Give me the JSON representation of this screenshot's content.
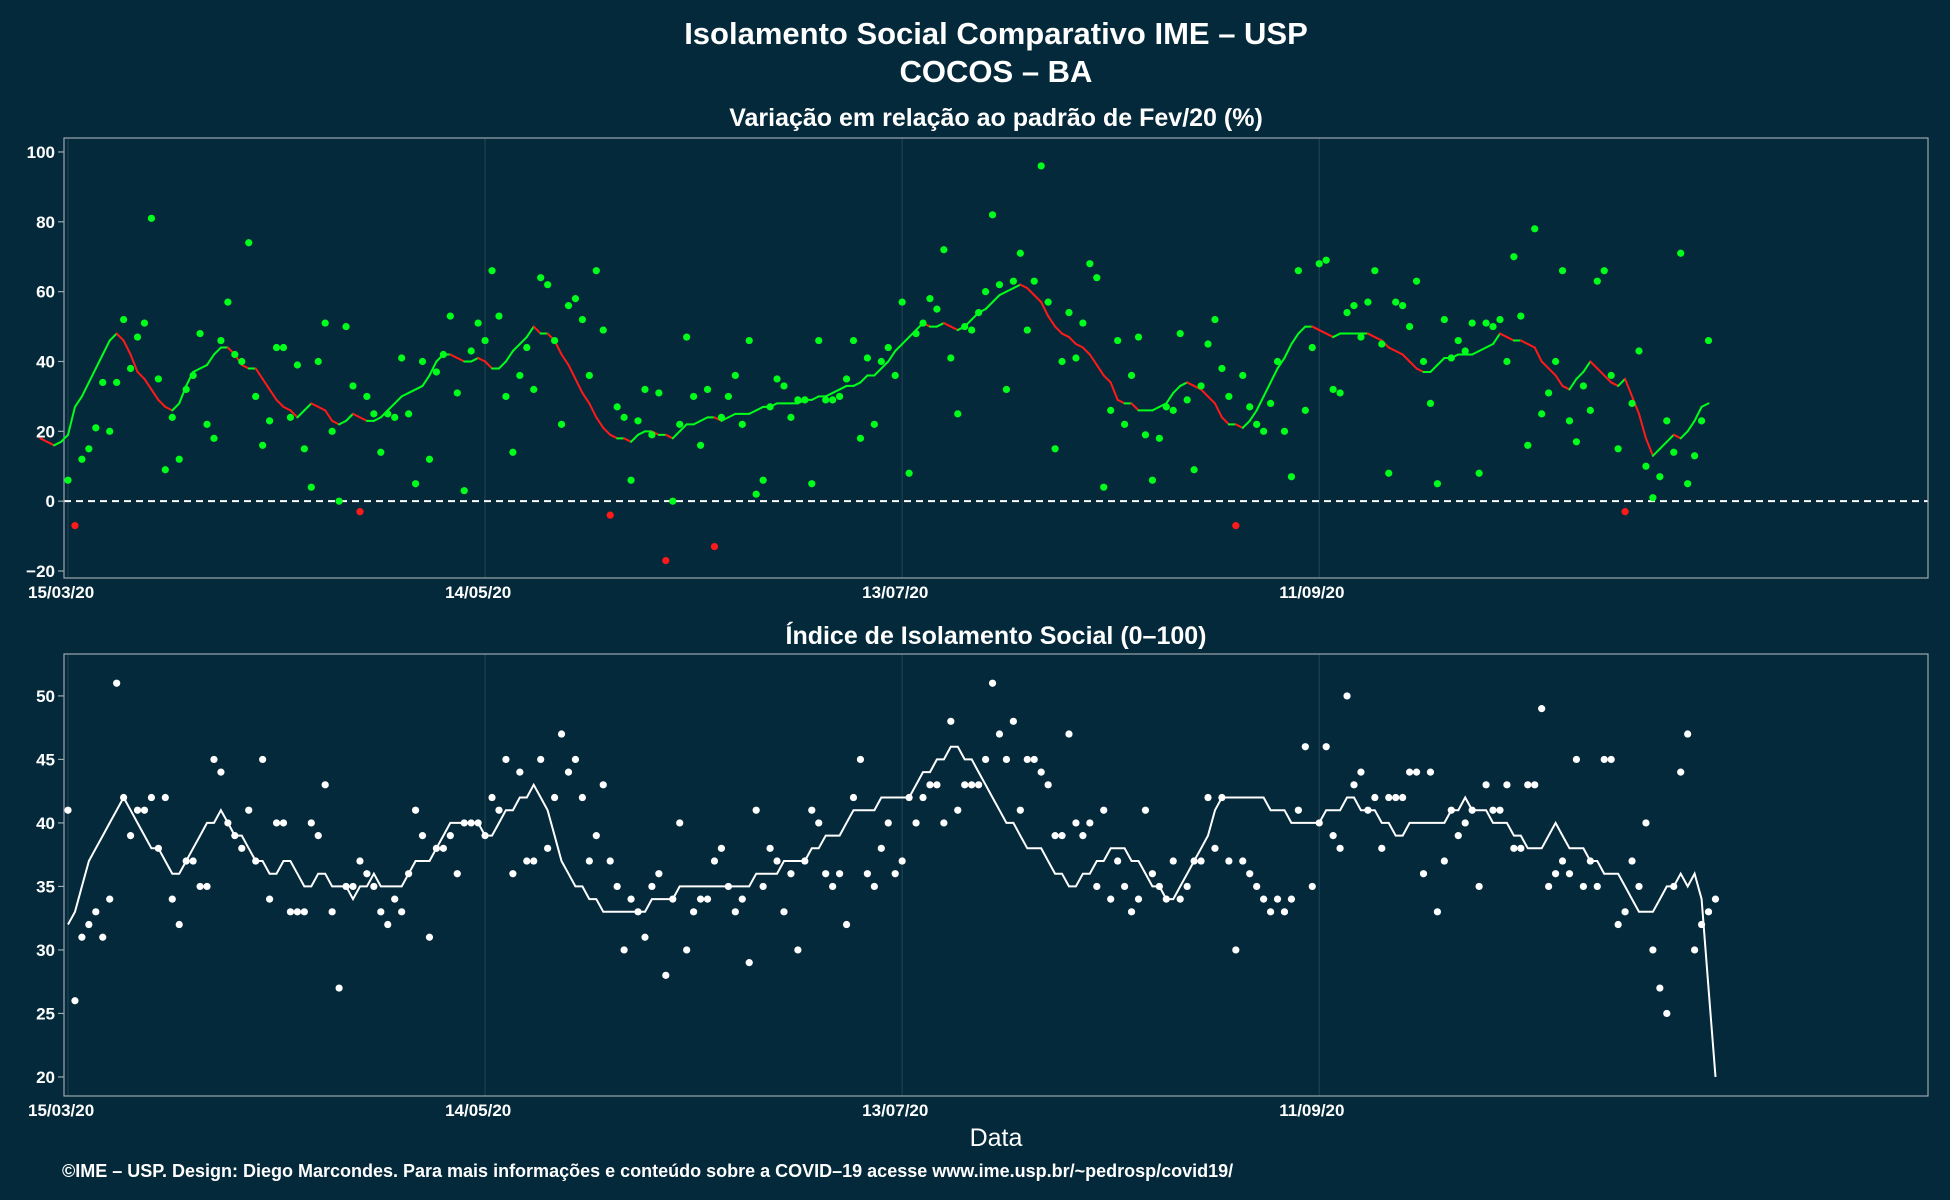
{
  "title": "Isolamento Social Comparativo IME – USP",
  "subtitle": "COCOS – BA",
  "xlabel": "Data",
  "footer": "©IME – USP. Design: Diego Marcondes. Para mais informações e conteúdo sobre a COVID–19 acesse www.ime.usp.br/~pedrosp/covid19/",
  "colors": {
    "background": "#04293a",
    "positive_point": "#00ff1a",
    "negative_point": "#ff1a1a",
    "index_point": "#ffffff",
    "zero_line": "#ffffff",
    "grid": "#1e4152",
    "frame": "#9aa8b0"
  },
  "chart_data": [
    {
      "type": "scatter",
      "title": "Variação em relação ao padrão de Fev/20 (%)",
      "x_start": "15/03/20",
      "x_end": "07/12/20",
      "x_ticks": [
        "15/03/20",
        "14/05/20",
        "13/07/20",
        "11/09/20"
      ],
      "ylim": [
        -22,
        104
      ],
      "y_ticks": [
        -20,
        0,
        20,
        40,
        60,
        80,
        100
      ],
      "zero_line": true,
      "series": [
        {
          "name": "",
          "role": "points",
          "values": [
            6,
            -7,
            12,
            15,
            21,
            34,
            20,
            34,
            52,
            38,
            47,
            51,
            81,
            35,
            9,
            24,
            12,
            32,
            36,
            48,
            22,
            18,
            46,
            57,
            42,
            40,
            74,
            30,
            16,
            23,
            44,
            44,
            24,
            39,
            15,
            4,
            40,
            51,
            20,
            0,
            50,
            33,
            -3,
            30,
            25,
            14,
            25,
            24,
            41,
            25,
            5,
            40,
            12,
            37,
            42,
            53,
            31,
            3,
            43,
            51,
            46,
            66,
            53,
            30,
            14,
            36,
            44,
            32,
            64,
            62,
            46,
            22,
            56,
            58,
            52,
            36,
            66,
            49,
            -4,
            27,
            24,
            6,
            23,
            32,
            19,
            31,
            -17,
            0,
            22,
            47,
            30,
            16,
            32,
            -13,
            24,
            30,
            36,
            22,
            46,
            2,
            6,
            27,
            35,
            33,
            24,
            29,
            29,
            5,
            46,
            29,
            29,
            30,
            35,
            46,
            18,
            41,
            22,
            40,
            44,
            36,
            57,
            8,
            48,
            51,
            58,
            55,
            72,
            41,
            25,
            50,
            49,
            54,
            60,
            82,
            62,
            32,
            63,
            71,
            49,
            63,
            96,
            57,
            15,
            40,
            54,
            41,
            51,
            68,
            64,
            4,
            26,
            46,
            22,
            36,
            47,
            19,
            6,
            18,
            27,
            26,
            48,
            29,
            9,
            33,
            45,
            52,
            38,
            30,
            -7,
            36,
            27,
            22,
            20,
            28,
            40,
            20,
            7,
            66,
            26,
            44,
            68,
            69,
            32,
            31,
            54,
            56,
            47,
            57,
            66,
            45,
            8,
            57,
            56,
            50,
            63,
            40,
            28,
            5,
            52,
            41,
            46,
            43,
            51,
            8,
            51,
            50,
            52,
            40,
            70,
            53,
            16,
            78,
            25,
            31,
            40,
            66,
            23,
            17,
            33,
            26,
            63,
            66,
            36,
            15,
            -3,
            28,
            43,
            10,
            1,
            7,
            23,
            14,
            71,
            5,
            13,
            23,
            46
          ]
        },
        {
          "name": "",
          "role": "moving_average",
          "values": [
            18,
            17,
            16,
            17,
            19,
            27,
            30,
            34,
            38,
            42,
            46,
            48,
            46,
            42,
            37,
            35,
            32,
            29,
            27,
            26,
            28,
            33,
            37,
            38,
            39,
            42,
            44,
            44,
            42,
            39,
            38,
            38,
            35,
            32,
            29,
            27,
            26,
            24,
            26,
            28,
            27,
            26,
            23,
            22,
            23,
            25,
            24,
            23,
            23,
            24,
            26,
            28,
            30,
            31,
            32,
            33,
            36,
            40,
            42,
            42,
            41,
            40,
            40,
            41,
            40,
            38,
            38,
            40,
            43,
            45,
            47,
            50,
            48,
            48,
            46,
            42,
            39,
            35,
            31,
            28,
            24,
            21,
            19,
            18,
            18,
            17,
            19,
            20,
            20,
            19,
            19,
            18,
            20,
            22,
            22,
            23,
            24,
            24,
            23,
            24,
            25,
            25,
            25,
            26,
            27,
            27,
            28,
            28,
            28,
            28,
            29,
            29,
            30,
            30,
            31,
            32,
            33,
            33,
            34,
            36,
            36,
            38,
            40,
            43,
            45,
            47,
            49,
            51,
            50,
            50,
            51,
            50,
            49,
            50,
            52,
            54,
            55,
            57,
            59,
            60,
            61,
            62,
            61,
            59,
            57,
            53,
            50,
            48,
            47,
            45,
            44,
            42,
            39,
            36,
            34,
            29,
            28,
            28,
            26,
            26,
            26,
            27,
            28,
            31,
            33,
            34,
            33,
            32,
            30,
            28,
            24,
            22,
            22,
            21,
            23,
            26,
            30,
            34,
            38,
            41,
            45,
            48,
            50,
            50,
            49,
            48,
            47,
            48,
            48,
            48,
            48,
            48,
            47,
            46,
            44,
            43,
            42,
            40,
            38,
            37,
            37,
            39,
            41,
            41,
            42,
            42,
            42,
            43,
            44,
            45,
            48,
            47,
            46,
            46,
            45,
            44,
            40,
            38,
            36,
            33,
            32,
            35,
            37,
            40,
            38,
            36,
            34,
            33,
            35,
            30,
            25,
            18,
            13,
            15,
            17,
            19,
            18,
            20,
            23,
            27,
            28
          ]
        }
      ]
    },
    {
      "type": "scatter",
      "title": "Índice de Isolamento Social (0–100)",
      "x_start": "15/03/20",
      "x_end": "07/12/20",
      "x_ticks": [
        "15/03/20",
        "14/05/20",
        "13/07/20",
        "11/09/20"
      ],
      "ylim": [
        18.5,
        53.3
      ],
      "y_ticks": [
        20,
        25,
        30,
        35,
        40,
        45,
        50
      ],
      "series": [
        {
          "name": "",
          "role": "points",
          "values": [
            41,
            26,
            31,
            32,
            33,
            31,
            34,
            51,
            42,
            39,
            41,
            41,
            42,
            38,
            42,
            34,
            32,
            37,
            37,
            35,
            35,
            45,
            44,
            40,
            39,
            38,
            41,
            37,
            45,
            34,
            40,
            40,
            33,
            33,
            33,
            40,
            39,
            43,
            33,
            27,
            35,
            35,
            37,
            36,
            35,
            33,
            32,
            34,
            33,
            36,
            41,
            39,
            31,
            38,
            38,
            39,
            36,
            40,
            40,
            40,
            39,
            42,
            41,
            45,
            36,
            44,
            37,
            37,
            45,
            38,
            42,
            47,
            44,
            45,
            42,
            37,
            39,
            43,
            37,
            35,
            30,
            34,
            33,
            31,
            35,
            36,
            28,
            34,
            40,
            30,
            33,
            34,
            34,
            37,
            38,
            35,
            33,
            34,
            29,
            41,
            35,
            38,
            37,
            33,
            36,
            30,
            37,
            41,
            40,
            36,
            35,
            36,
            32,
            42,
            45,
            36,
            35,
            38,
            40,
            36,
            37,
            42,
            40,
            42,
            43,
            43,
            40,
            48,
            41,
            43,
            43,
            43,
            45,
            51,
            47,
            45,
            48,
            41,
            45,
            45,
            44,
            43,
            39,
            39,
            47,
            40,
            39,
            40,
            35,
            41,
            34,
            37,
            35,
            33,
            34,
            41,
            36,
            35,
            34,
            37,
            34,
            35,
            37,
            37,
            42,
            38,
            42,
            37,
            30,
            37,
            36,
            35,
            34,
            33,
            34,
            33,
            34,
            41,
            46,
            35,
            40,
            46,
            39,
            38,
            50,
            43,
            44,
            41,
            42,
            38,
            42,
            42,
            42,
            44,
            44,
            36,
            44,
            33,
            37,
            41,
            39,
            40,
            41,
            35,
            43,
            41,
            41,
            43,
            38,
            38,
            43,
            43,
            49,
            35,
            36,
            37,
            36,
            45,
            35,
            37,
            35,
            45,
            45,
            32,
            33,
            37,
            35,
            40,
            30,
            27,
            25,
            35,
            44,
            47,
            30,
            32,
            33,
            34
          ]
        },
        {
          "name": "",
          "role": "moving_average",
          "values": [
            32,
            33,
            35,
            37,
            38,
            39,
            40,
            41,
            42,
            41,
            40,
            39,
            38,
            38,
            37,
            36,
            36,
            37,
            38,
            39,
            40,
            40,
            41,
            40,
            39,
            39,
            38,
            37,
            37,
            36,
            36,
            37,
            37,
            36,
            35,
            35,
            36,
            36,
            35,
            35,
            35,
            34,
            35,
            35,
            36,
            35,
            35,
            35,
            35,
            36,
            37,
            37,
            37,
            38,
            39,
            40,
            40,
            40,
            40,
            40,
            39,
            39,
            40,
            41,
            41,
            42,
            42,
            43,
            42,
            41,
            39,
            37,
            36,
            35,
            35,
            34,
            34,
            33,
            33,
            33,
            33,
            33,
            33,
            33,
            34,
            34,
            34,
            34,
            35,
            35,
            35,
            35,
            35,
            35,
            35,
            35,
            35,
            35,
            35,
            36,
            36,
            36,
            36,
            37,
            37,
            37,
            37,
            38,
            38,
            39,
            39,
            39,
            40,
            41,
            41,
            41,
            41,
            42,
            42,
            42,
            42,
            42,
            43,
            44,
            44,
            45,
            45,
            46,
            46,
            45,
            45,
            44,
            43,
            42,
            41,
            40,
            40,
            39,
            38,
            38,
            38,
            37,
            36,
            36,
            35,
            35,
            36,
            36,
            37,
            37,
            38,
            38,
            38,
            37,
            37,
            36,
            35,
            35,
            34,
            34,
            35,
            36,
            37,
            38,
            39,
            41,
            42,
            42,
            42,
            42,
            42,
            42,
            42,
            41,
            41,
            41,
            40,
            40,
            40,
            40,
            40,
            41,
            41,
            41,
            42,
            42,
            41,
            41,
            41,
            40,
            40,
            39,
            39,
            40,
            40,
            40,
            40,
            40,
            40,
            41,
            41,
            42,
            41,
            41,
            41,
            40,
            40,
            40,
            39,
            39,
            38,
            38,
            38,
            39,
            40,
            39,
            38,
            38,
            38,
            37,
            37,
            36,
            36,
            36,
            35,
            34,
            33,
            33,
            33,
            34,
            35,
            35,
            36,
            35,
            36,
            34,
            27,
            20
          ]
        }
      ]
    }
  ]
}
